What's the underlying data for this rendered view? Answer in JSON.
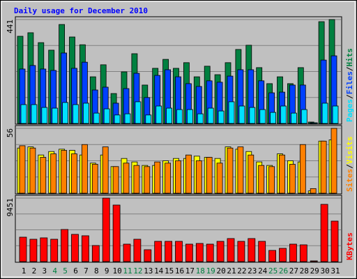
{
  "chart_data": {
    "type": "bar",
    "title": "Daily usage for December 2010",
    "categories": [
      "1",
      "2",
      "3",
      "4",
      "5",
      "6",
      "7",
      "8",
      "9",
      "10",
      "11",
      "12",
      "13",
      "14",
      "15",
      "16",
      "17",
      "18",
      "19",
      "20",
      "21",
      "22",
      "23",
      "24",
      "25",
      "26",
      "27",
      "28",
      "29",
      "30",
      "31"
    ],
    "weekend_indices": [
      3,
      4,
      10,
      11,
      17,
      18,
      24,
      25
    ],
    "weekend_label_color": "#008040",
    "legend_separator": "/",
    "panels": [
      {
        "ylim": [
          0,
          441
        ],
        "yticks": [
          441
        ],
        "series": [
          {
            "name": "Hits",
            "color": "#008040",
            "values": [
              370,
              385,
              343,
              311,
              420,
              367,
              334,
              198,
              249,
              127,
              219,
              296,
              163,
              234,
              272,
              234,
              258,
              198,
              243,
              207,
              258,
              314,
              332,
              237,
              169,
              198,
              169,
              237,
              6,
              432,
              441
            ]
          },
          {
            "name": "Files",
            "color": "#0040FF",
            "values": [
              231,
              246,
              231,
              225,
              299,
              234,
              260,
              142,
              154,
              86,
              148,
              213,
              110,
              204,
              228,
              198,
              169,
              157,
              181,
              175,
              201,
              228,
              228,
              181,
              130,
              133,
              163,
              163,
              3,
              269,
              287
            ]
          },
          {
            "name": "Pages",
            "color": "#00E0FF",
            "values": [
              80,
              80,
              68,
              65,
              89,
              80,
              86,
              44,
              62,
              36,
              41,
              92,
              36,
              74,
              65,
              59,
              59,
              41,
              65,
              53,
              92,
              74,
              68,
              59,
              47,
              74,
              44,
              59,
              3,
              86,
              74
            ]
          }
        ]
      },
      {
        "ylim": [
          0,
          56
        ],
        "yticks": [
          56
        ],
        "series": [
          {
            "name": "Visits",
            "color": "#FFFF00",
            "values": [
              39,
              40,
              33,
              36,
              38,
              37,
              33,
              26,
              33,
              23,
              30,
              27,
              24,
              24,
              28,
              30,
              30,
              32,
              31,
              30,
              40,
              38,
              36,
              27,
              24,
              34,
              28,
              27,
              2,
              45,
              46
            ]
          },
          {
            "name": "Sites",
            "color": "#FF8000",
            "values": [
              41,
              39,
              31,
              34,
              37,
              34,
              42,
              25,
              40,
              23,
              26,
              24,
              23,
              27,
              26,
              28,
              33,
              28,
              31,
              26,
              39,
              40,
              33,
              24,
              23,
              33,
              25,
              42,
              4,
              45,
              56
            ]
          }
        ]
      },
      {
        "ylim": [
          0,
          9451
        ],
        "yticks": [
          9451
        ],
        "series": [
          {
            "name": "KBytes",
            "color": "#FF0000",
            "values": [
              3636,
              3325,
              3533,
              3325,
              4779,
              4052,
              3844,
              2390,
              9451,
              8416,
              2598,
              3325,
              1766,
              3013,
              3013,
              3013,
              2598,
              2701,
              2598,
              3013,
              3429,
              3013,
              3429,
              3013,
              1662,
              1974,
              2598,
              2494,
              104,
              8520,
              6026
            ]
          }
        ]
      }
    ]
  }
}
